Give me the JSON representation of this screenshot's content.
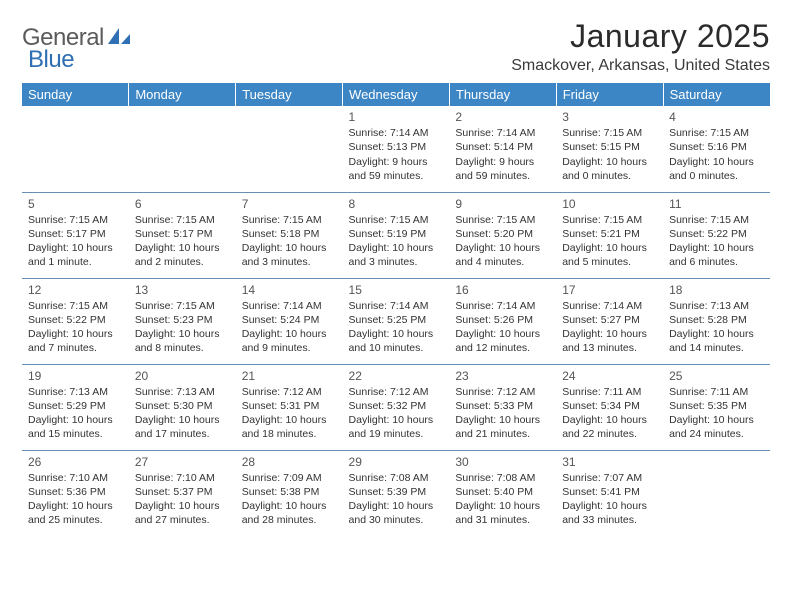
{
  "logo": {
    "part1": "General",
    "part2": "Blue"
  },
  "title": "January 2025",
  "location": "Smackover, Arkansas, United States",
  "colors": {
    "header_bg": "#3d86c6",
    "header_text": "#ffffff",
    "row_divider": "#6a8fb5",
    "logo_gray": "#5b5b5b",
    "logo_blue": "#2f6fb3",
    "body_text": "#333333",
    "daynum_text": "#555555",
    "page_bg": "#ffffff"
  },
  "typography": {
    "title_fontsize": 32,
    "location_fontsize": 16,
    "weekday_fontsize": 13,
    "daynum_fontsize": 12,
    "cell_fontsize": 10.5
  },
  "weekdays": [
    "Sunday",
    "Monday",
    "Tuesday",
    "Wednesday",
    "Thursday",
    "Friday",
    "Saturday"
  ],
  "weeks": [
    [
      null,
      null,
      null,
      {
        "n": "1",
        "sr": "7:14 AM",
        "ss": "5:13 PM",
        "dl": "9 hours and 59 minutes."
      },
      {
        "n": "2",
        "sr": "7:14 AM",
        "ss": "5:14 PM",
        "dl": "9 hours and 59 minutes."
      },
      {
        "n": "3",
        "sr": "7:15 AM",
        "ss": "5:15 PM",
        "dl": "10 hours and 0 minutes."
      },
      {
        "n": "4",
        "sr": "7:15 AM",
        "ss": "5:16 PM",
        "dl": "10 hours and 0 minutes."
      }
    ],
    [
      {
        "n": "5",
        "sr": "7:15 AM",
        "ss": "5:17 PM",
        "dl": "10 hours and 1 minute."
      },
      {
        "n": "6",
        "sr": "7:15 AM",
        "ss": "5:17 PM",
        "dl": "10 hours and 2 minutes."
      },
      {
        "n": "7",
        "sr": "7:15 AM",
        "ss": "5:18 PM",
        "dl": "10 hours and 3 minutes."
      },
      {
        "n": "8",
        "sr": "7:15 AM",
        "ss": "5:19 PM",
        "dl": "10 hours and 3 minutes."
      },
      {
        "n": "9",
        "sr": "7:15 AM",
        "ss": "5:20 PM",
        "dl": "10 hours and 4 minutes."
      },
      {
        "n": "10",
        "sr": "7:15 AM",
        "ss": "5:21 PM",
        "dl": "10 hours and 5 minutes."
      },
      {
        "n": "11",
        "sr": "7:15 AM",
        "ss": "5:22 PM",
        "dl": "10 hours and 6 minutes."
      }
    ],
    [
      {
        "n": "12",
        "sr": "7:15 AM",
        "ss": "5:22 PM",
        "dl": "10 hours and 7 minutes."
      },
      {
        "n": "13",
        "sr": "7:15 AM",
        "ss": "5:23 PM",
        "dl": "10 hours and 8 minutes."
      },
      {
        "n": "14",
        "sr": "7:14 AM",
        "ss": "5:24 PM",
        "dl": "10 hours and 9 minutes."
      },
      {
        "n": "15",
        "sr": "7:14 AM",
        "ss": "5:25 PM",
        "dl": "10 hours and 10 minutes."
      },
      {
        "n": "16",
        "sr": "7:14 AM",
        "ss": "5:26 PM",
        "dl": "10 hours and 12 minutes."
      },
      {
        "n": "17",
        "sr": "7:14 AM",
        "ss": "5:27 PM",
        "dl": "10 hours and 13 minutes."
      },
      {
        "n": "18",
        "sr": "7:13 AM",
        "ss": "5:28 PM",
        "dl": "10 hours and 14 minutes."
      }
    ],
    [
      {
        "n": "19",
        "sr": "7:13 AM",
        "ss": "5:29 PM",
        "dl": "10 hours and 15 minutes."
      },
      {
        "n": "20",
        "sr": "7:13 AM",
        "ss": "5:30 PM",
        "dl": "10 hours and 17 minutes."
      },
      {
        "n": "21",
        "sr": "7:12 AM",
        "ss": "5:31 PM",
        "dl": "10 hours and 18 minutes."
      },
      {
        "n": "22",
        "sr": "7:12 AM",
        "ss": "5:32 PM",
        "dl": "10 hours and 19 minutes."
      },
      {
        "n": "23",
        "sr": "7:12 AM",
        "ss": "5:33 PM",
        "dl": "10 hours and 21 minutes."
      },
      {
        "n": "24",
        "sr": "7:11 AM",
        "ss": "5:34 PM",
        "dl": "10 hours and 22 minutes."
      },
      {
        "n": "25",
        "sr": "7:11 AM",
        "ss": "5:35 PM",
        "dl": "10 hours and 24 minutes."
      }
    ],
    [
      {
        "n": "26",
        "sr": "7:10 AM",
        "ss": "5:36 PM",
        "dl": "10 hours and 25 minutes."
      },
      {
        "n": "27",
        "sr": "7:10 AM",
        "ss": "5:37 PM",
        "dl": "10 hours and 27 minutes."
      },
      {
        "n": "28",
        "sr": "7:09 AM",
        "ss": "5:38 PM",
        "dl": "10 hours and 28 minutes."
      },
      {
        "n": "29",
        "sr": "7:08 AM",
        "ss": "5:39 PM",
        "dl": "10 hours and 30 minutes."
      },
      {
        "n": "30",
        "sr": "7:08 AM",
        "ss": "5:40 PM",
        "dl": "10 hours and 31 minutes."
      },
      {
        "n": "31",
        "sr": "7:07 AM",
        "ss": "5:41 PM",
        "dl": "10 hours and 33 minutes."
      },
      null
    ]
  ],
  "labels": {
    "sunrise": "Sunrise:",
    "sunset": "Sunset:",
    "daylight": "Daylight:"
  }
}
